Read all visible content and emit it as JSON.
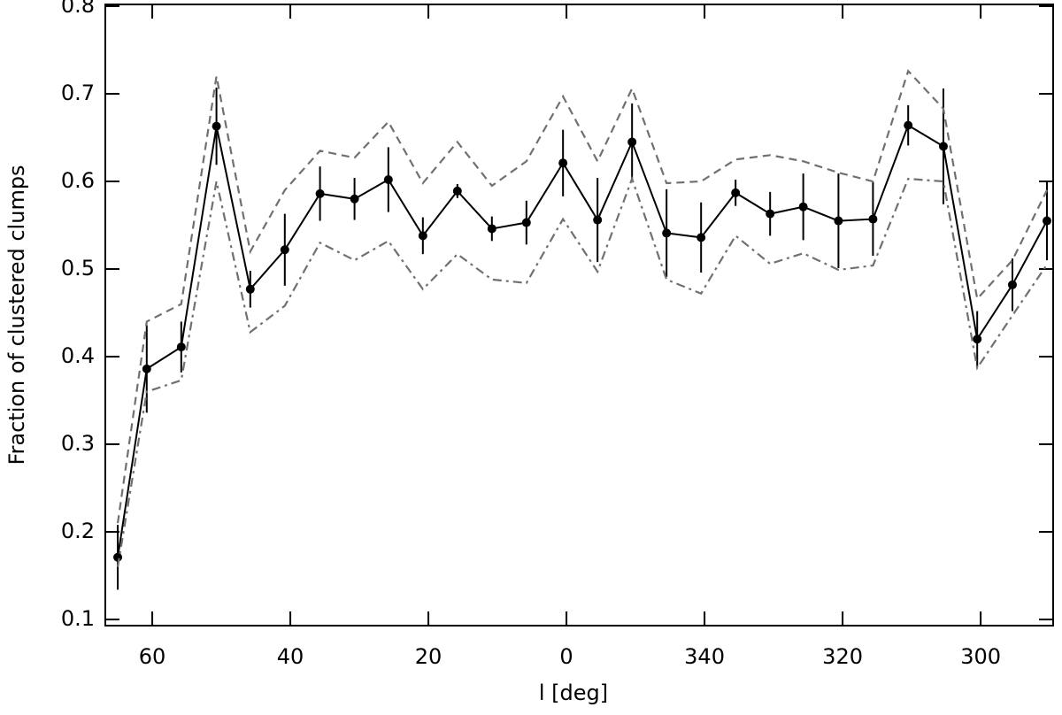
{
  "chart_data": {
    "type": "line",
    "xlabel": "l [deg]",
    "ylabel": "Fraction of clustered clumps",
    "x": [
      65,
      60.8,
      55.8,
      50.7,
      45.8,
      40.8,
      35.7,
      30.7,
      25.8,
      20.8,
      15.8,
      10.8,
      5.8,
      0.5,
      -4.5,
      -9.5,
      -14.5,
      -19.5,
      -24.5,
      -29.5,
      -34.3,
      -39.4,
      -44.4,
      -49.5,
      -54.6,
      -59.5,
      -64.6,
      -69.6
    ],
    "series": [
      {
        "color": "#000000",
        "style": "solid",
        "markers": true,
        "values": [
          0.171,
          0.386,
          0.411,
          0.663,
          0.477,
          0.522,
          0.586,
          0.58,
          0.602,
          0.538,
          0.589,
          0.546,
          0.553,
          0.621,
          0.556,
          0.645,
          0.541,
          0.536,
          0.587,
          0.563,
          0.571,
          0.555,
          0.557,
          0.664,
          0.64,
          0.42,
          0.482,
          0.555
        ],
        "errors": [
          0.037,
          0.05,
          0.029,
          0.044,
          0.021,
          0.041,
          0.031,
          0.024,
          0.037,
          0.021,
          0.008,
          0.014,
          0.025,
          0.038,
          0.048,
          0.044,
          0.05,
          0.04,
          0.015,
          0.025,
          0.038,
          0.054,
          0.042,
          0.023,
          0.066,
          0.032,
          0.03,
          0.045
        ]
      },
      {
        "color": "#707070",
        "style": "dashed",
        "values": [
          0.21,
          0.44,
          0.46,
          0.72,
          0.52,
          0.59,
          0.635,
          0.627,
          0.668,
          0.598,
          0.645,
          0.595,
          0.623,
          0.697,
          0.623,
          0.706,
          0.598,
          0.6,
          0.625,
          0.63,
          0.623,
          0.61,
          0.6,
          0.726,
          0.683,
          0.466,
          0.51,
          0.59
        ]
      },
      {
        "color": "#707070",
        "style": "dashdot",
        "values": [
          0.16,
          0.36,
          0.373,
          0.6,
          0.428,
          0.458,
          0.53,
          0.51,
          0.532,
          0.477,
          0.517,
          0.488,
          0.484,
          0.557,
          0.497,
          0.603,
          0.488,
          0.472,
          0.538,
          0.506,
          0.518,
          0.499,
          0.504,
          0.603,
          0.6,
          0.387,
          0.447,
          0.505
        ]
      }
    ],
    "xlim": [
      66.8,
      -70.5
    ],
    "xticks": [
      60,
      40,
      20,
      0,
      {
        "value": -20,
        "label": "340"
      },
      {
        "value": -40,
        "label": "320"
      },
      {
        "value": -60,
        "label": "300"
      }
    ],
    "ylim": [
      0.093,
      0.802
    ],
    "yticks": [
      0.1,
      0.2,
      0.3,
      0.4,
      0.5,
      0.6,
      0.7,
      0.8
    ]
  }
}
